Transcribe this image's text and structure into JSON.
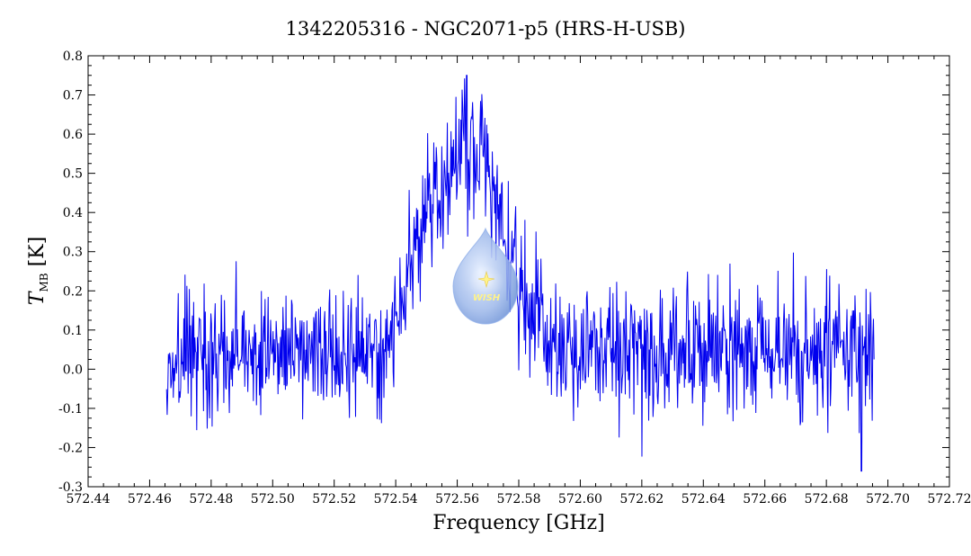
{
  "chart_data": {
    "type": "line",
    "title": "1342205316 - NGC2071-p5 (HRS-H-USB)",
    "xlabel": "Frequency [GHz]",
    "ylabel_main": "T",
    "ylabel_sub": "MB",
    "ylabel_unit": " [K]",
    "xlim": [
      572.44,
      572.72
    ],
    "ylim": [
      -0.3,
      0.8
    ],
    "xticks": [
      "572.44",
      "572.46",
      "572.48",
      "572.50",
      "572.52",
      "572.54",
      "572.56",
      "572.58",
      "572.60",
      "572.62",
      "572.64",
      "572.66",
      "572.68",
      "572.70",
      "572.72"
    ],
    "yticks": [
      "-0.3",
      "-0.2",
      "-0.1",
      "0.0",
      "0.1",
      "0.2",
      "0.3",
      "0.4",
      "0.5",
      "0.6",
      "0.7",
      "0.8"
    ],
    "grid": false,
    "series": [
      {
        "color": "#0000ee",
        "x_start": 572.4655,
        "x_end": 572.6955,
        "noise_rms": 0.085,
        "baseline": 0.04,
        "line_profile": [
          {
            "center": 572.5643,
            "amplitude": 0.52,
            "fwhm": 0.026
          },
          {
            "center": 572.548,
            "amplitude": 0.14,
            "fwhm": 0.012
          }
        ],
        "extremes": {
          "max_y": 0.75,
          "max_x": 572.563,
          "min_y": -0.26,
          "min_x": 572.6913
        }
      }
    ]
  },
  "logo": {
    "text": "WISH",
    "color_light": "#d8e6ff",
    "color_mid": "#8eaee8",
    "color_dark": "#3e6fc4",
    "star_color": "#fff38a"
  }
}
